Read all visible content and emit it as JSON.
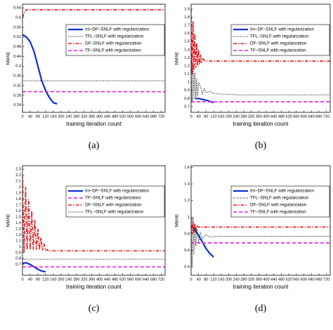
{
  "chart_data": [
    {
      "type": "line",
      "caption": "(a)",
      "x_label": "training iteration count",
      "y_label": "NMAE",
      "xlim": [
        0,
        740
      ],
      "xticks": [
        0,
        40,
        80,
        120,
        160,
        200,
        240,
        280,
        320,
        360,
        400,
        440,
        480,
        520,
        560,
        600,
        640,
        680,
        720
      ],
      "ylim": [
        0.21,
        0.655
      ],
      "yticks": [
        0.24,
        0.28,
        0.32,
        0.36,
        0.4,
        0.44,
        0.48,
        0.52,
        0.56,
        0.6,
        0.64
      ],
      "legend": "upper right",
      "series": [
        {
          "name": "Im–DF–SNLF with regularization",
          "color": "#0a2fd6",
          "style": "solid",
          "x": [
            0,
            20,
            40,
            60,
            80,
            100,
            120,
            140,
            160,
            180
          ],
          "values": [
            0.53,
            0.52,
            0.5,
            0.46,
            0.4,
            0.34,
            0.3,
            0.27,
            0.25,
            0.245
          ]
        },
        {
          "name": "TFL–SNLF with regularization",
          "color": "#000000",
          "style": "dotted",
          "x": [
            0,
            740
          ],
          "values": [
            0.34,
            0.34
          ]
        },
        {
          "name": "DF–SNLF with regularization",
          "color": "#e8141a",
          "style": "dashdot",
          "x": [
            0,
            10,
            20,
            740
          ],
          "values": [
            0.6,
            0.625,
            0.632,
            0.632
          ]
        },
        {
          "name": "TF–SNLF with regularization",
          "color": "#e619e0",
          "style": "dashed",
          "x": [
            0,
            740
          ],
          "values": [
            0.295,
            0.295
          ]
        }
      ]
    },
    {
      "type": "line",
      "caption": "(b)",
      "x_label": "training iteration count",
      "y_label": "NMAE",
      "xlim": [
        0,
        740
      ],
      "xticks": [
        0,
        40,
        80,
        120,
        160,
        200,
        240,
        280,
        320,
        360,
        400,
        440,
        480,
        520,
        560,
        600,
        640,
        680,
        720
      ],
      "ylim": [
        0.63,
        1.96
      ],
      "yticks": [
        0.7,
        0.8,
        0.9,
        1,
        1.1,
        1.2,
        1.3,
        1.4,
        1.5,
        1.6,
        1.7,
        1.8,
        1.9
      ],
      "legend": "upper right",
      "series": [
        {
          "name": "Im–DF–SNLF with regularization",
          "color": "#0a2fd6",
          "style": "solid",
          "x": [
            20,
            40,
            80,
            120
          ],
          "values": [
            0.8,
            0.8,
            0.78,
            0.75
          ]
        },
        {
          "name": "TFL–SNLF with regularization",
          "color": "#000000",
          "style": "dotted",
          "x": [
            0,
            5,
            10,
            15,
            20,
            25,
            30,
            35,
            40,
            50,
            60,
            70,
            80,
            100,
            120,
            160,
            200,
            260,
            740
          ],
          "values": [
            1.3,
            0.75,
            1.22,
            0.8,
            1.12,
            0.82,
            1.05,
            0.83,
            1.0,
            0.95,
            0.86,
            0.92,
            0.87,
            0.89,
            0.86,
            0.855,
            0.85,
            0.845,
            0.845
          ]
        },
        {
          "name": "DF–SNLF with regularization",
          "color": "#e8141a",
          "style": "dashdot",
          "x": [
            0,
            5,
            10,
            15,
            20,
            25,
            30,
            35,
            40,
            45,
            50,
            55,
            60,
            70,
            80,
            100,
            740
          ],
          "values": [
            1.9,
            1.1,
            1.75,
            1.15,
            1.6,
            1.18,
            1.48,
            1.2,
            1.4,
            1.22,
            1.34,
            1.24,
            1.3,
            1.27,
            1.26,
            1.26,
            1.26
          ]
        },
        {
          "name": "TF–SNLF with regularization",
          "color": "#e619e0",
          "style": "dashed",
          "x": [
            0,
            740
          ],
          "values": [
            0.76,
            0.76
          ]
        }
      ]
    },
    {
      "type": "line",
      "caption": "(c)",
      "x_label": "training iteration count",
      "y_label": "NMAE",
      "xlim": [
        0,
        740
      ],
      "xticks": [
        0,
        40,
        80,
        120,
        160,
        200,
        240,
        280,
        320,
        360,
        400,
        440,
        480,
        520,
        560,
        600,
        640,
        680,
        720
      ],
      "ylim": [
        0.52,
        2.36
      ],
      "yticks": [
        0.7,
        0.8,
        0.9,
        1,
        1.1,
        1.2,
        1.3,
        1.4,
        1.5,
        1.6,
        1.7,
        1.8,
        1.9,
        2,
        2.1,
        2.2,
        2.3
      ],
      "legend": "upper right",
      "series": [
        {
          "name": "Im–DF–SNLF with regularization",
          "color": "#0a2fd6",
          "style": "solid",
          "x": [
            0,
            20,
            40,
            60,
            80,
            100,
            120
          ],
          "values": [
            0.72,
            0.73,
            0.7,
            0.66,
            0.62,
            0.59,
            0.58
          ]
        },
        {
          "name": "TF–SNLF with regularization",
          "color": "#e619e0",
          "style": "dashed",
          "x": [
            0,
            740
          ],
          "values": [
            0.66,
            0.66
          ]
        },
        {
          "name": "DF–SNLF with regularization",
          "color": "#e8141a",
          "style": "dashdot",
          "x": [
            0,
            8,
            16,
            24,
            32,
            40,
            48,
            56,
            64,
            72,
            80,
            88,
            96,
            104,
            112,
            120,
            128,
            136,
            740
          ],
          "values": [
            2.2,
            0.9,
            2.0,
            0.95,
            1.8,
            0.95,
            1.6,
            0.95,
            1.45,
            0.95,
            1.3,
            0.95,
            1.15,
            0.94,
            1.05,
            0.94,
            0.95,
            0.93,
            0.93
          ]
        },
        {
          "name": "TFL–SNLF with regularization",
          "color": "#000000",
          "style": "dotted",
          "x": [
            0,
            740
          ],
          "values": [
            0.79,
            0.79
          ]
        }
      ]
    },
    {
      "type": "line",
      "caption": "(d)",
      "x_label": "training iteration count",
      "y_label": "NMAE",
      "xlim": [
        0,
        740
      ],
      "xticks": [
        0,
        40,
        80,
        120,
        160,
        200,
        240,
        280,
        320,
        360,
        400,
        440,
        480,
        520,
        560,
        600,
        640,
        680,
        720
      ],
      "ylim": [
        0.3,
        1.62
      ],
      "yticks": [
        0.4,
        0.6,
        0.8,
        1,
        1.2,
        1.4,
        1.6
      ],
      "legend": "upper right",
      "series": [
        {
          "name": "Im–DF–SNLF with regularization",
          "color": "#0a2fd6",
          "style": "solid",
          "x": [
            0,
            20,
            40,
            60,
            80,
            100,
            120
          ],
          "values": [
            0.9,
            0.85,
            0.78,
            0.7,
            0.62,
            0.56,
            0.52
          ]
        },
        {
          "name": "TFL–SNLF with regularization",
          "color": "#000000",
          "style": "dotted",
          "x": [
            0,
            5,
            10,
            15,
            20,
            25,
            30,
            40,
            50,
            60,
            80,
            100,
            150,
            740
          ],
          "values": [
            1.1,
            0.4,
            1.0,
            0.55,
            0.92,
            0.65,
            0.87,
            0.7,
            0.82,
            0.74,
            0.79,
            0.76,
            0.77,
            0.77
          ]
        },
        {
          "name": "DF–SNLF with regularization",
          "color": "#e8141a",
          "style": "dashdot",
          "x": [
            0,
            5,
            10,
            15,
            20,
            25,
            30,
            40,
            60,
            740
          ],
          "values": [
            1.0,
            0.8,
            0.95,
            0.82,
            0.92,
            0.85,
            0.9,
            0.88,
            0.88,
            0.88
          ]
        },
        {
          "name": "TF–SNLF with regularization",
          "color": "#e619e0",
          "style": "dashed",
          "x": [
            0,
            740
          ],
          "values": [
            0.69,
            0.69
          ]
        }
      ]
    }
  ]
}
